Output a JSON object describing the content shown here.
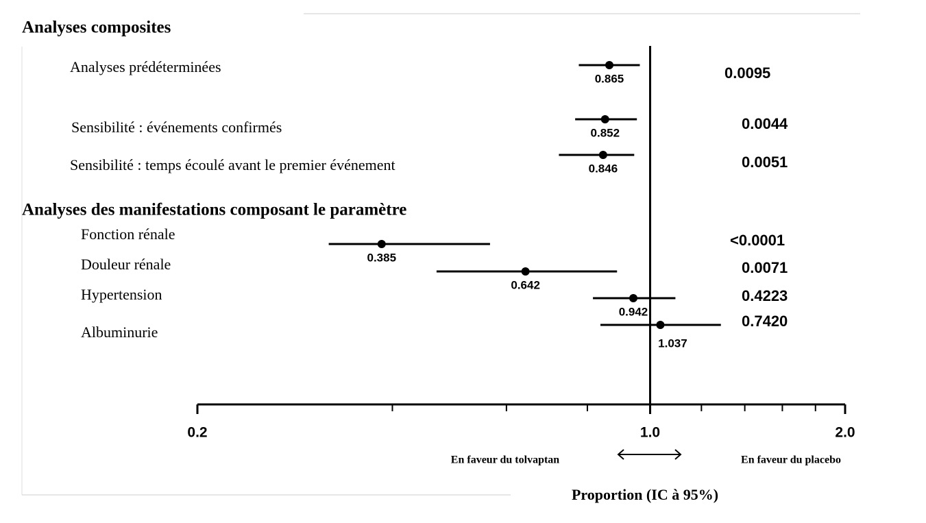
{
  "chart_data": {
    "type": "forest",
    "sections": [
      "Analyses composites",
      "Analyses des manifestations composant le paramètre"
    ],
    "rows": [
      {
        "label": "Analyses prédéterminées",
        "estimate": 0.865,
        "ci_low": 0.776,
        "ci_high": 0.964,
        "p_value": "0.0095"
      },
      {
        "label": "Sensibilité : événements confirmés",
        "estimate": 0.852,
        "ci_low": 0.766,
        "ci_high": 0.954,
        "p_value": "0.0044"
      },
      {
        "label": "Sensibilité : temps écoulé avant le premier événement",
        "estimate": 0.846,
        "ci_low": 0.723,
        "ci_high": 0.945,
        "p_value": "0.0051"
      },
      {
        "label": "Fonction rénale",
        "estimate": 0.385,
        "ci_low": 0.319,
        "ci_high": 0.566,
        "p_value": "<0.0001"
      },
      {
        "label": "Douleur rénale",
        "estimate": 0.642,
        "ci_low": 0.468,
        "ci_high": 0.889,
        "p_value": "0.0071"
      },
      {
        "label": "Hypertension",
        "estimate": 0.942,
        "ci_low": 0.816,
        "ci_high": 1.094,
        "p_value": "0.4223"
      },
      {
        "label": "Albuminurie",
        "estimate": 1.037,
        "ci_low": 0.838,
        "ci_high": 1.286,
        "p_value": "0.7420"
      }
    ],
    "xlim": [
      0.2,
      2.0
    ],
    "xticks": [
      0.2,
      {
        "value": 1,
        "label": "1.0"
      },
      {
        "value": 2,
        "label": "2.0"
      }
    ],
    "xminorticks": [
      0.4,
      0.6,
      0.8,
      1.2,
      1.4,
      1.6,
      1.8
    ],
    "log_x": true,
    "reference": 1,
    "left_note": "En faveur du tolvaptan",
    "right_note": "En faveur du placebo",
    "xlabel": "Proportion (IC à 95%)",
    "color": "#000000"
  }
}
